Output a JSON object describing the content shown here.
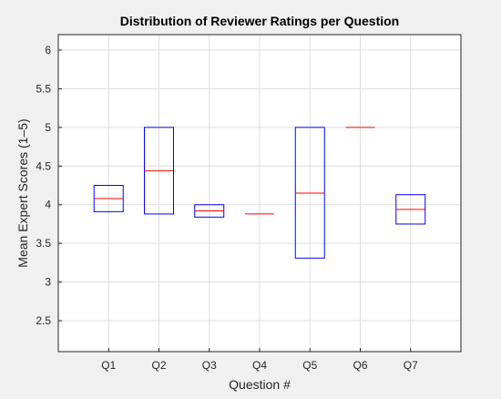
{
  "chart_data": {
    "type": "box",
    "title": "Distribution of Reviewer Ratings per Question",
    "xlabel": "Question #",
    "ylabel": "Mean Expert Scores (1–5)",
    "categories": [
      "Q1",
      "Q2",
      "Q3",
      "Q4",
      "Q5",
      "Q6",
      "Q7"
    ],
    "boxes": [
      {
        "category": "Q1",
        "q1": 3.91,
        "median": 4.08,
        "q3": 4.25
      },
      {
        "category": "Q2",
        "q1": 3.88,
        "median": 4.44,
        "q3": 5.0
      },
      {
        "category": "Q3",
        "q1": 3.84,
        "median": 3.92,
        "q3": 4.0
      },
      {
        "category": "Q4",
        "q1": 3.88,
        "median": 3.88,
        "q3": 3.88
      },
      {
        "category": "Q5",
        "q1": 3.31,
        "median": 4.15,
        "q3": 5.0
      },
      {
        "category": "Q6",
        "q1": 5.0,
        "median": 5.0,
        "q3": 5.0
      },
      {
        "category": "Q7",
        "q1": 3.75,
        "median": 3.94,
        "q3": 4.13
      }
    ],
    "yticks": [
      "2.5",
      "3",
      "3.5",
      "4",
      "4.5",
      "5",
      "5.5",
      "6"
    ],
    "ylim": [
      2.1,
      6.2
    ],
    "grid": true,
    "colors": {
      "box": "#0000ff",
      "median": "#ff0000",
      "grid": "#dfdfdf",
      "axes": "#262626",
      "figure_bg": "#f0f0f0",
      "axes_bg": "#ffffff"
    }
  }
}
